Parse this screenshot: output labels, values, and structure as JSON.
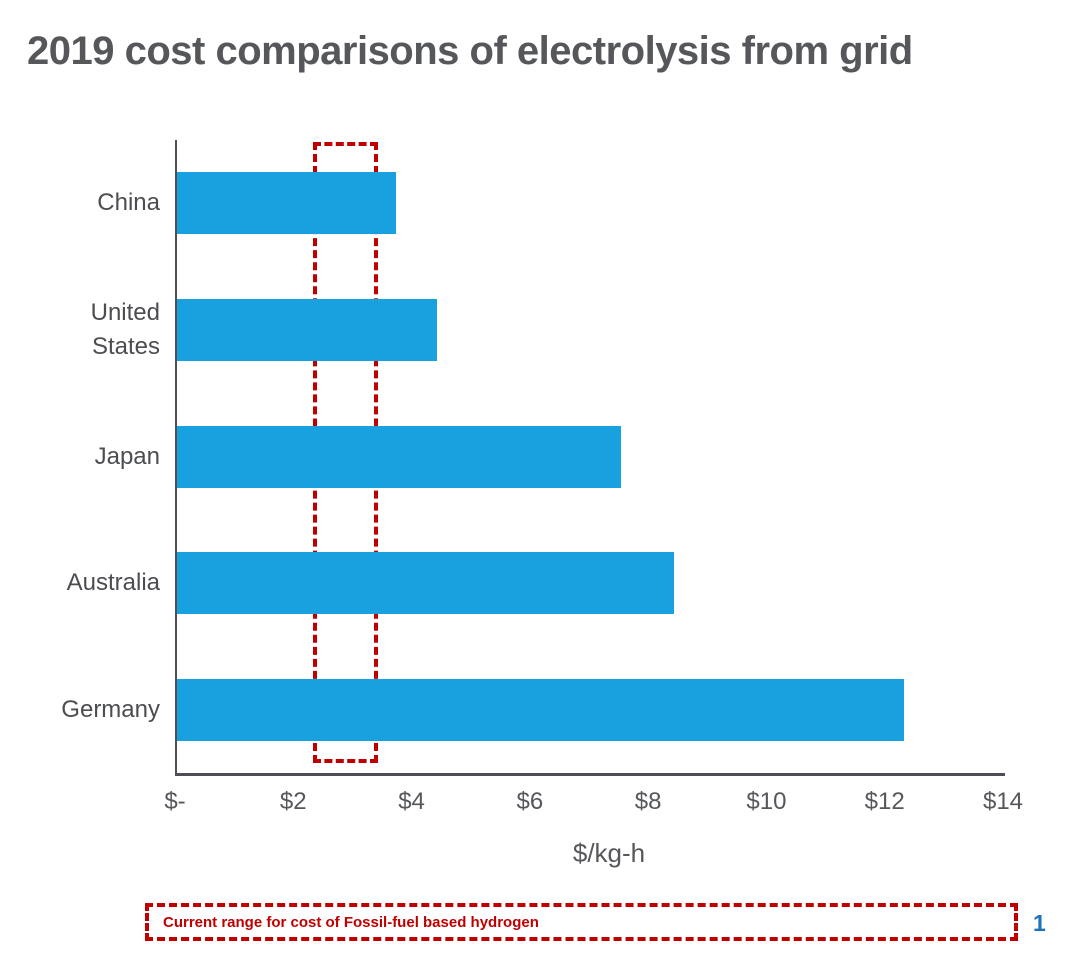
{
  "title": "2019 cost comparisons of electrolysis from grid",
  "page_number": "1",
  "legend": {
    "label": "Current range for cost of Fossil-fuel based hydrogen"
  },
  "chart_data": {
    "type": "bar",
    "orientation": "horizontal",
    "title": "2019 cost comparisons of electrolysis from grid",
    "categories": [
      "China",
      "United States",
      "Japan",
      "Australia",
      "Germany"
    ],
    "values": [
      3.7,
      4.4,
      7.5,
      8.4,
      12.3
    ],
    "xlabel": "$/kg-h",
    "ylabel": "",
    "xlim": [
      0,
      14
    ],
    "xticks": [
      {
        "label": "$-",
        "value": 0
      },
      {
        "label": "$2",
        "value": 2
      },
      {
        "label": "$4",
        "value": 4
      },
      {
        "label": "$6",
        "value": 6
      },
      {
        "label": "$8",
        "value": 8
      },
      {
        "label": "$10",
        "value": 10
      },
      {
        "label": "$12",
        "value": 12
      },
      {
        "label": "$14",
        "value": 14
      }
    ],
    "grid": false,
    "legend_position": "bottom",
    "annotation": {
      "label": "Current range for cost of Fossil-fuel based hydrogen",
      "range_from": 2.3,
      "range_to": 3.4,
      "style": "red-dashed-rectangle"
    },
    "colors": {
      "bar": "#18A0DF",
      "annotation_red": "#C00000",
      "axis": "#4D4F52",
      "text": "#55575B",
      "page_number": "#2072B8"
    }
  }
}
